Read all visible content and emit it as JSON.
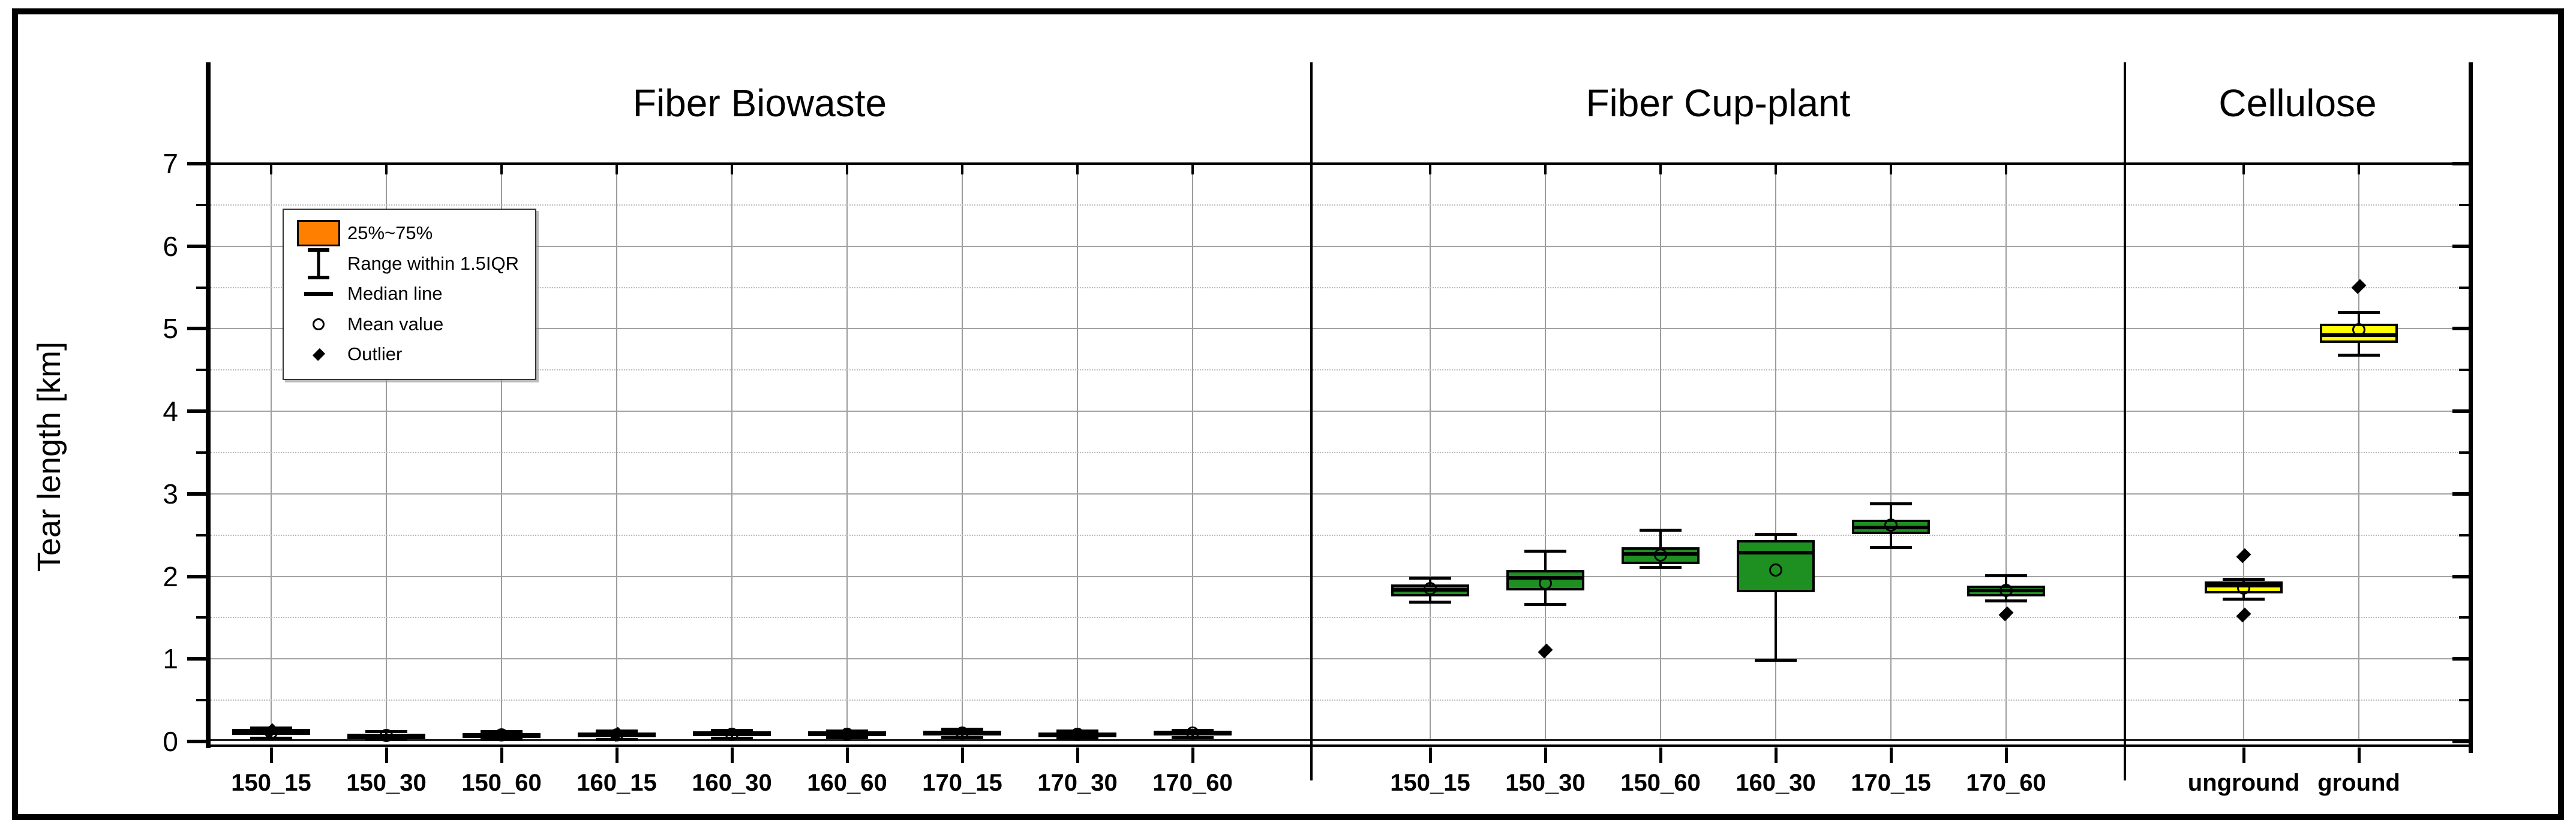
{
  "chart_data": {
    "type": "boxplot",
    "title": "",
    "ylabel": "Tear length [km]",
    "ylim": [
      0,
      7
    ],
    "y_tick_labels": [
      "0",
      "1",
      "2",
      "3",
      "4",
      "5",
      "6",
      "7"
    ],
    "y_minor_step": 0.5,
    "grid": {
      "horizontal_major": "solid gray",
      "horizontal_minor": "dotted gray",
      "vertical": "solid gray at each category",
      "legend_position": "upper-left"
    },
    "panels": [
      {
        "title": "Fiber Biowaste",
        "box_color": "#FF8000",
        "boxes": [
          {
            "label": "150_15",
            "low": 0.04,
            "q1": 0.08,
            "median": 0.12,
            "q3": 0.15,
            "high": 0.17,
            "mean": 0.11,
            "outliers": [
              0.13
            ]
          },
          {
            "label": "150_30",
            "low": 0.03,
            "q1": 0.05,
            "median": 0.07,
            "q3": 0.09,
            "high": 0.12,
            "mean": 0.07,
            "outliers": []
          },
          {
            "label": "150_60",
            "low": 0.03,
            "q1": 0.06,
            "median": 0.08,
            "q3": 0.1,
            "high": 0.12,
            "mean": 0.08,
            "outliers": []
          },
          {
            "label": "160_15",
            "low": 0.03,
            "q1": 0.06,
            "median": 0.08,
            "q3": 0.11,
            "high": 0.13,
            "mean": 0.08,
            "outliers": [
              0.09
            ]
          },
          {
            "label": "160_30",
            "low": 0.04,
            "q1": 0.07,
            "median": 0.09,
            "q3": 0.12,
            "high": 0.14,
            "mean": 0.09,
            "outliers": []
          },
          {
            "label": "160_60",
            "low": 0.05,
            "q1": 0.07,
            "median": 0.1,
            "q3": 0.12,
            "high": 0.13,
            "mean": 0.09,
            "outliers": []
          },
          {
            "label": "170_15",
            "low": 0.05,
            "q1": 0.08,
            "median": 0.1,
            "q3": 0.13,
            "high": 0.15,
            "mean": 0.1,
            "outliers": []
          },
          {
            "label": "170_30",
            "low": 0.04,
            "q1": 0.07,
            "median": 0.09,
            "q3": 0.11,
            "high": 0.13,
            "mean": 0.09,
            "outliers": []
          },
          {
            "label": "170_60",
            "low": 0.05,
            "q1": 0.08,
            "median": 0.1,
            "q3": 0.13,
            "high": 0.14,
            "mean": 0.1,
            "outliers": []
          }
        ]
      },
      {
        "title": "Fiber Cup-plant",
        "box_color": "#1D9021",
        "boxes": [
          {
            "label": "150_15",
            "low": 1.69,
            "q1": 1.76,
            "median": 1.84,
            "q3": 1.9,
            "high": 1.98,
            "mean": 1.85,
            "outliers": []
          },
          {
            "label": "150_30",
            "low": 1.66,
            "q1": 1.83,
            "median": 1.98,
            "q3": 2.08,
            "high": 2.31,
            "mean": 1.92,
            "outliers": [
              1.1
            ]
          },
          {
            "label": "150_60",
            "low": 2.11,
            "q1": 2.15,
            "median": 2.27,
            "q3": 2.35,
            "high": 2.56,
            "mean": 2.26,
            "outliers": []
          },
          {
            "label": "160_30",
            "low": 0.99,
            "q1": 1.81,
            "median": 2.29,
            "q3": 2.44,
            "high": 2.51,
            "mean": 2.08,
            "outliers": []
          },
          {
            "label": "170_15",
            "low": 2.35,
            "q1": 2.51,
            "median": 2.59,
            "q3": 2.69,
            "high": 2.88,
            "mean": 2.62,
            "outliers": []
          },
          {
            "label": "170_60",
            "low": 1.71,
            "q1": 1.76,
            "median": 1.83,
            "q3": 1.89,
            "high": 2.01,
            "mean": 1.83,
            "outliers": [
              1.55
            ]
          }
        ]
      },
      {
        "title": "Cellulose",
        "box_color": "#FFFF00",
        "boxes": [
          {
            "label": "unground",
            "low": 1.73,
            "q1": 1.79,
            "median": 1.89,
            "q3": 1.94,
            "high": 1.97,
            "mean": 1.86,
            "outliers": [
              2.25,
              1.53
            ]
          },
          {
            "label": "ground",
            "low": 4.68,
            "q1": 4.83,
            "median": 4.92,
            "q3": 5.06,
            "high": 5.2,
            "mean": 4.99,
            "outliers": [
              5.51
            ]
          }
        ]
      }
    ],
    "legend": {
      "swatch_color": "#FF8000",
      "items": [
        {
          "glyph": "box-swatch",
          "label": "25%~75%"
        },
        {
          "glyph": "whisker-range",
          "label": "Range within 1.5IQR"
        },
        {
          "glyph": "median-line",
          "label": "Median line"
        },
        {
          "glyph": "mean-circle",
          "label": "Mean value"
        },
        {
          "glyph": "outlier-diamond",
          "label": "Outlier"
        }
      ]
    }
  }
}
